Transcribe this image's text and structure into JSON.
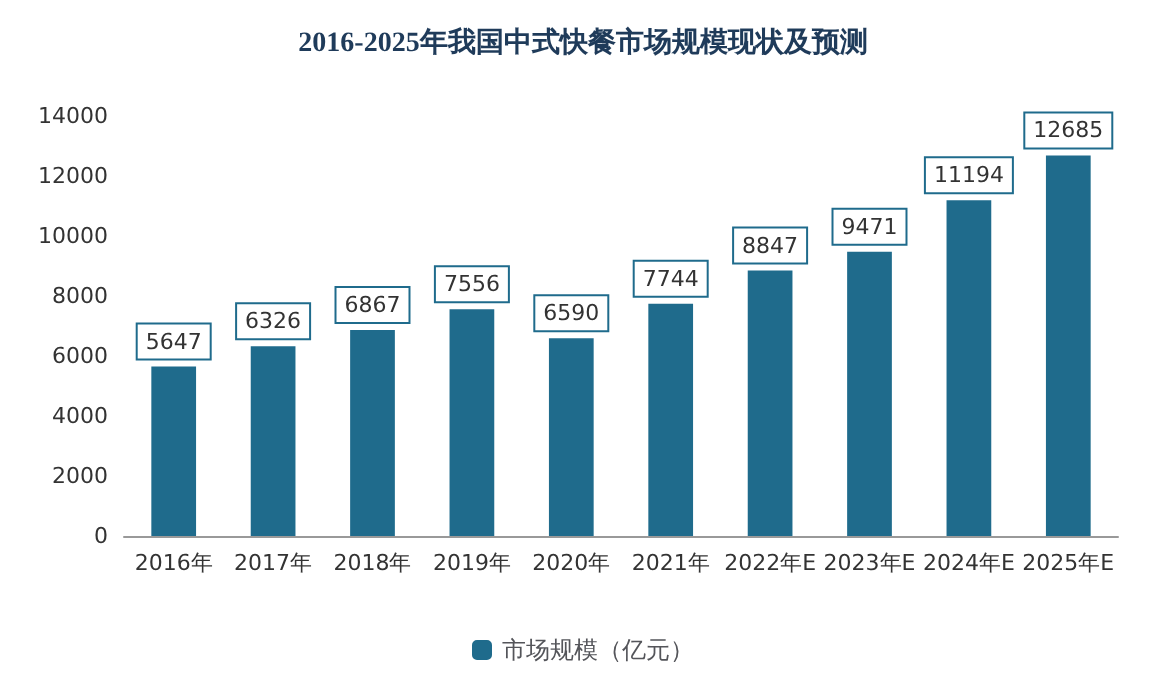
{
  "chart_data": {
    "type": "bar",
    "title": "2016-2025年我国中式快餐市场规模现状及预测",
    "categories": [
      "2016年",
      "2017年",
      "2018年",
      "2019年",
      "2020年",
      "2021年",
      "2022年E",
      "2023年E",
      "2024年E",
      "2025年E"
    ],
    "series": [
      {
        "name": "市场规模（亿元）",
        "color": "#1f6b8c",
        "values": [
          5647,
          6326,
          6867,
          7556,
          6590,
          7744,
          8847,
          9471,
          11194,
          12685
        ]
      }
    ],
    "ylim": [
      0,
      14000
    ],
    "yticks": [
      0,
      2000,
      4000,
      6000,
      8000,
      10000,
      12000,
      14000
    ],
    "grid": false,
    "legend": "bottom",
    "data_labels": true
  }
}
